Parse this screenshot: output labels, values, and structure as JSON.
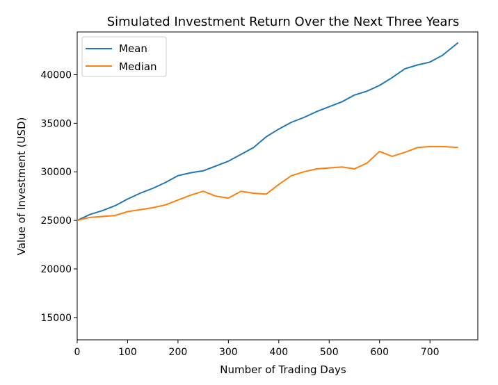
{
  "chart_data": {
    "type": "line",
    "title": "Simulated Investment Return Over the Next Three Years",
    "xlabel": "Number of Trading Days",
    "ylabel": "Value of Investment (USD)",
    "xlim": [
      -0.0,
      795
    ],
    "ylim": [
      12700,
      44400
    ],
    "xticks": [
      0,
      100,
      200,
      300,
      400,
      500,
      600,
      700
    ],
    "yticks": [
      15000,
      20000,
      25000,
      30000,
      35000,
      40000
    ],
    "legend": "top-left",
    "grid": false,
    "series": [
      {
        "name": "Mean",
        "color": "#1f77b4",
        "x": [
          0,
          25,
          50,
          75,
          100,
          125,
          150,
          175,
          200,
          225,
          250,
          275,
          300,
          325,
          350,
          375,
          400,
          425,
          450,
          475,
          500,
          525,
          550,
          575,
          600,
          625,
          650,
          675,
          700,
          725,
          756
        ],
        "y": [
          25000,
          25600,
          26000,
          26500,
          27200,
          27800,
          28300,
          28900,
          29600,
          29900,
          30100,
          30600,
          31100,
          31800,
          32500,
          33600,
          34400,
          35100,
          35600,
          36200,
          36700,
          37200,
          37900,
          38300,
          38900,
          39700,
          40600,
          41000,
          41300,
          42000,
          43300
        ]
      },
      {
        "name": "Median",
        "color": "#ff7f0e",
        "x": [
          0,
          25,
          50,
          75,
          100,
          125,
          150,
          175,
          200,
          225,
          250,
          275,
          300,
          325,
          350,
          375,
          400,
          425,
          450,
          475,
          500,
          525,
          550,
          575,
          600,
          625,
          650,
          675,
          700,
          725,
          756
        ],
        "y": [
          25000,
          25300,
          25400,
          25500,
          25900,
          26100,
          26300,
          26600,
          27100,
          27600,
          28000,
          27500,
          27300,
          28000,
          27800,
          27700,
          28700,
          29600,
          30000,
          30300,
          30400,
          30500,
          30300,
          30900,
          32100,
          31600,
          32000,
          32500,
          32600,
          32600,
          32500
        ]
      }
    ]
  }
}
